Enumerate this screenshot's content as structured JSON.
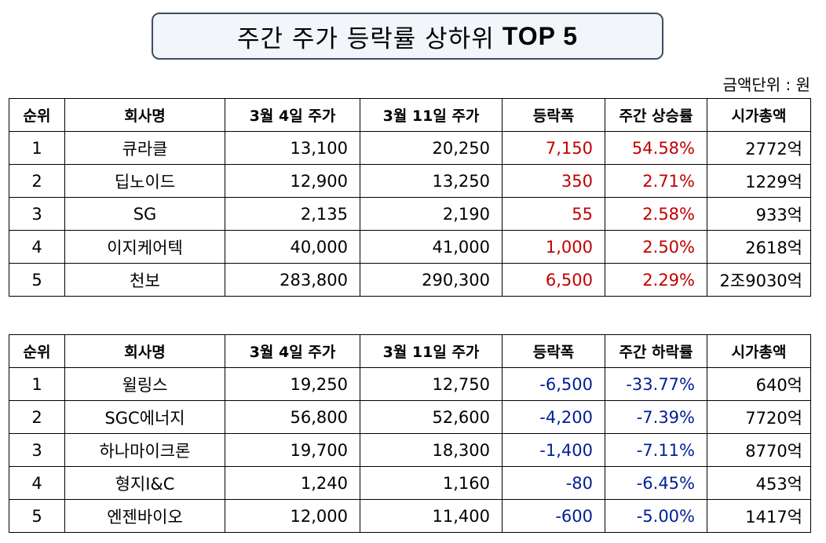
{
  "title": {
    "ko": "주간 주가 등락률 상하위",
    "en": "TOP 5"
  },
  "unit_note": "금액단위 : 원",
  "colors": {
    "rise": "#c00000",
    "fall": "#001e96",
    "title_border": "#3c4d63"
  },
  "gainers": {
    "headers": [
      "순위",
      "회사명",
      "3월 4일 주가",
      "3월 11일 주가",
      "등락폭",
      "주간 상승률",
      "시가총액"
    ],
    "rows": [
      {
        "rank": "1",
        "company": "큐라클",
        "price_mar4": "13,100",
        "price_mar11": "20,250",
        "change": "7,150",
        "rate": "54.58%",
        "mcap": "2772억"
      },
      {
        "rank": "2",
        "company": "딥노이드",
        "price_mar4": "12,900",
        "price_mar11": "13,250",
        "change": "350",
        "rate": "2.71%",
        "mcap": "1229억"
      },
      {
        "rank": "3",
        "company": "SG",
        "price_mar4": "2,135",
        "price_mar11": "2,190",
        "change": "55",
        "rate": "2.58%",
        "mcap": "933억"
      },
      {
        "rank": "4",
        "company": "이지케어텍",
        "price_mar4": "40,000",
        "price_mar11": "41,000",
        "change": "1,000",
        "rate": "2.50%",
        "mcap": "2618억"
      },
      {
        "rank": "5",
        "company": "천보",
        "price_mar4": "283,800",
        "price_mar11": "290,300",
        "change": "6,500",
        "rate": "2.29%",
        "mcap": "2조9030억"
      }
    ]
  },
  "losers": {
    "headers": [
      "순위",
      "회사명",
      "3월 4일 주가",
      "3월 11일 주가",
      "등락폭",
      "주간 하락률",
      "시가총액"
    ],
    "rows": [
      {
        "rank": "1",
        "company": "윌링스",
        "price_mar4": "19,250",
        "price_mar11": "12,750",
        "change": "-6,500",
        "rate": "-33.77%",
        "mcap": "640억"
      },
      {
        "rank": "2",
        "company": "SGC에너지",
        "price_mar4": "56,800",
        "price_mar11": "52,600",
        "change": "-4,200",
        "rate": "-7.39%",
        "mcap": "7720억"
      },
      {
        "rank": "3",
        "company": "하나마이크론",
        "price_mar4": "19,700",
        "price_mar11": "18,300",
        "change": "-1,400",
        "rate": "-7.11%",
        "mcap": "8770억"
      },
      {
        "rank": "4",
        "company": "형지I&C",
        "price_mar4": "1,240",
        "price_mar11": "1,160",
        "change": "-80",
        "rate": "-6.45%",
        "mcap": "453억"
      },
      {
        "rank": "5",
        "company": "엔젠바이오",
        "price_mar4": "12,000",
        "price_mar11": "11,400",
        "change": "-600",
        "rate": "-5.00%",
        "mcap": "1417억"
      }
    ]
  }
}
